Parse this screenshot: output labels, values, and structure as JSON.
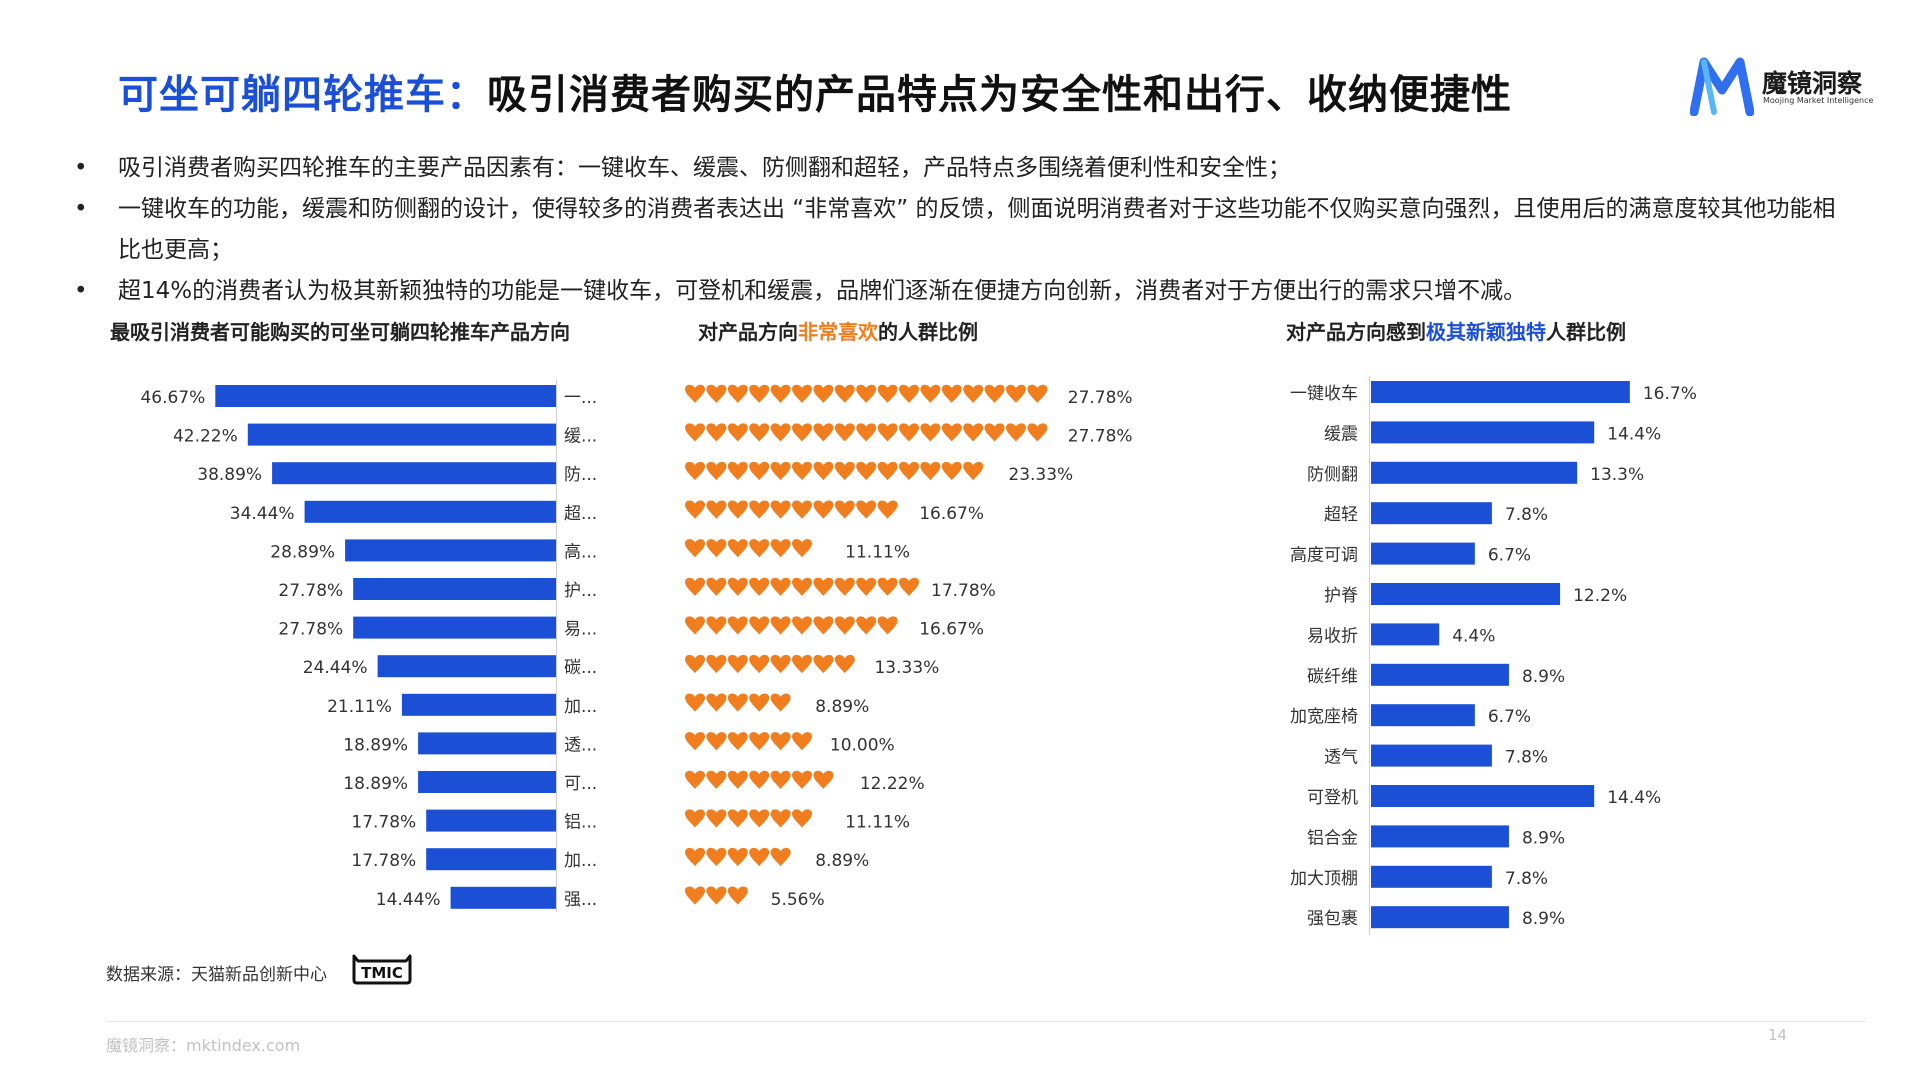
{
  "header": {
    "title_highlight": "可坐可躺四轮推车：",
    "title_rest": "吸引消费者购买的产品特点为安全性和出行、收纳便捷性"
  },
  "logo": {
    "name": "魔镜洞察",
    "subtitle": "Moojing Market Intelligence",
    "icon": "m-logo-icon",
    "color": "#2f6ff0"
  },
  "bullets": [
    "吸引消费者购买四轮推车的主要产品因素有：一键收车、缓震、防侧翻和超轻，产品特点多围绕着便利性和安全性；",
    "一键收车的功能，缓震和防侧翻的设计，使得较多的消费者表达出 “非常喜欢” 的反馈，侧面说明消费者对于这些功能不仅购买意向强烈，且使用后的满意度较其他功能相比也更高；",
    "超14%的消费者认为极其新颖独特的功能是一键收车，可登机和缓震，品牌们逐渐在便捷方向创新，消费者对于方便出行的需求只增不减。"
  ],
  "chart_titles": {
    "chart1": "最吸引消费者可能购买的可坐可躺四轮推车产品方向",
    "chart2_pre": "对产品方向",
    "chart2_hl": "非常喜欢",
    "chart2_post": "的人群比例",
    "chart3_pre": "对产品方向感到",
    "chart3_hl": "极其新颖独特",
    "chart3_post": "人群比例"
  },
  "colors": {
    "blue": "#1a4fd6",
    "orange": "#f07d1e"
  },
  "chart_data": [
    {
      "type": "bar",
      "orientation": "horizontal",
      "title": "最吸引消费者可能购买的可坐可躺四轮推车产品方向",
      "categories": [
        "一...",
        "缓...",
        "防...",
        "超...",
        "高...",
        "护...",
        "易...",
        "碳...",
        "加...",
        "透...",
        "可...",
        "铝...",
        "加...",
        "强..."
      ],
      "values": [
        46.67,
        42.22,
        38.89,
        34.44,
        28.89,
        27.78,
        27.78,
        24.44,
        21.11,
        18.89,
        18.89,
        17.78,
        17.78,
        14.44
      ],
      "value_labels": [
        "46.67%",
        "42.22%",
        "38.89%",
        "34.44%",
        "28.89%",
        "27.78%",
        "27.78%",
        "24.44%",
        "21.11%",
        "18.89%",
        "18.89%",
        "17.78%",
        "17.78%",
        "14.44%"
      ],
      "direction": "bars grow leftward from axis on right",
      "color": "#1a4fd6"
    },
    {
      "type": "pictograph",
      "icon": "heart-icon",
      "title": "对产品方向非常喜欢的人群比例",
      "values": [
        27.78,
        27.78,
        23.33,
        16.67,
        11.11,
        17.78,
        16.67,
        13.33,
        8.89,
        10.0,
        12.22,
        11.11,
        8.89,
        5.56
      ],
      "value_labels": [
        "27.78%",
        "27.78%",
        "23.33%",
        "16.67%",
        "11.11%",
        "17.78%",
        "16.67%",
        "13.33%",
        "8.89%",
        "10.00%",
        "12.22%",
        "11.11%",
        "8.89%",
        "5.56%"
      ],
      "percent_per_icon": 1.6,
      "color": "#f07d1e"
    },
    {
      "type": "bar",
      "orientation": "horizontal",
      "title": "对产品方向感到极其新颖独特人群比例",
      "categories": [
        "一键收车",
        "缓震",
        "防侧翻",
        "超轻",
        "高度可调",
        "护脊",
        "易收折",
        "碳纤维",
        "加宽座椅",
        "透气",
        "可登机",
        "铝合金",
        "加大顶棚",
        "强包裹"
      ],
      "values": [
        16.7,
        14.4,
        13.3,
        7.8,
        6.7,
        12.2,
        4.4,
        8.9,
        6.7,
        7.8,
        14.4,
        8.9,
        7.8,
        8.9
      ],
      "value_labels": [
        "16.7%",
        "14.4%",
        "13.3%",
        "7.8%",
        "6.7%",
        "12.2%",
        "4.4%",
        "8.9%",
        "6.7%",
        "7.8%",
        "14.4%",
        "8.9%",
        "7.8%",
        "8.9%"
      ],
      "color": "#1a4fd6"
    }
  ],
  "source": {
    "text": "数据来源：天猫新品创新中心",
    "badge": "TMIC"
  },
  "footer": {
    "text": "魔镜洞察：mktindex.com",
    "page": "14"
  }
}
